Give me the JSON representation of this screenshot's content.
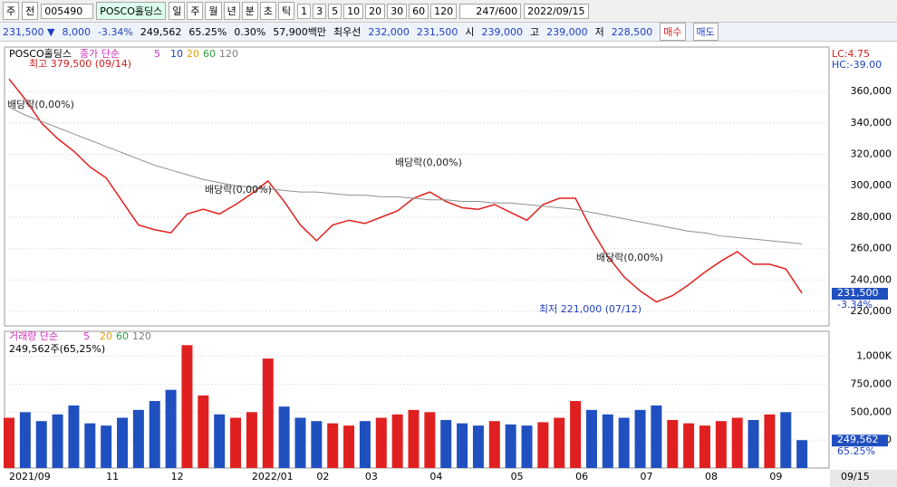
{
  "toolbar": {
    "market": "주",
    "scope": "전",
    "code": "005490",
    "name": "POSCO홀딩스",
    "periods": [
      "일",
      "주",
      "월",
      "년",
      "분",
      "초",
      "틱"
    ],
    "intervals": [
      "1",
      "3",
      "5",
      "10",
      "20",
      "30",
      "60",
      "120"
    ],
    "count": "247/600",
    "date": "2022/09/15"
  },
  "info_bar": {
    "price": "231,500 ▼",
    "change": "8,000",
    "change_pct": "-3.34%",
    "volume": "249,562",
    "volume_pct": "65.25%",
    "turnover": "0.30%",
    "amount": "57,900백만",
    "best_label": "최우선",
    "ask": "232,000",
    "bid": "231,500",
    "open_label": "시",
    "open": "239,000",
    "high_label": "고",
    "high": "239,000",
    "low_label": "저",
    "low": "228,500",
    "buy": "매수",
    "sell": "매도"
  },
  "chart_data": [
    {
      "type": "line",
      "title": "POSCO홀딩스",
      "legend": {
        "title": "종가 단순",
        "items": [
          {
            "name": "5",
            "color": "#d030c0"
          },
          {
            "name": "10",
            "color": "#2040d0"
          },
          {
            "name": "20",
            "color": "#e0a000"
          },
          {
            "name": "60",
            "color": "#30a040"
          },
          {
            "name": "120",
            "color": "#808080"
          }
        ]
      },
      "categories": [
        "2021/09",
        null,
        null,
        null,
        null,
        null,
        "11",
        null,
        null,
        null,
        "12",
        null,
        null,
        null,
        null,
        "2022/01",
        null,
        null,
        null,
        "02",
        null,
        null,
        "03",
        null,
        null,
        null,
        "04",
        null,
        null,
        null,
        null,
        "05",
        null,
        null,
        null,
        "06",
        null,
        null,
        null,
        "07",
        null,
        null,
        null,
        "08",
        null,
        null,
        null,
        "09",
        null,
        null
      ],
      "series": [
        {
          "color": "#e02020",
          "values": [
            368000,
            355000,
            340000,
            330000,
            322000,
            312000,
            305000,
            290000,
            275000,
            272000,
            270000,
            282000,
            285000,
            282000,
            288000,
            295000,
            303000,
            290000,
            275000,
            265000,
            275000,
            278000,
            276000,
            280000,
            284000,
            292000,
            296000,
            290000,
            286000,
            285000,
            288000,
            283000,
            278000,
            288000,
            292000,
            292000,
            272000,
            255000,
            242000,
            233000,
            226000,
            230000,
            237000,
            245000,
            252000,
            258000,
            250000,
            250000,
            247000,
            231500
          ]
        },
        {
          "color": "#909090",
          "values": [
            350000,
            345000,
            341000,
            337000,
            333000,
            329000,
            325000,
            321000,
            317000,
            313000,
            310000,
            307000,
            304000,
            302000,
            300000,
            299000,
            298000,
            297000,
            296000,
            296000,
            295000,
            294000,
            294000,
            293000,
            293000,
            292000,
            291000,
            291000,
            290000,
            290000,
            289000,
            289000,
            288000,
            287000,
            286000,
            285000,
            283000,
            281000,
            279000,
            277000,
            275000,
            273000,
            271000,
            270000,
            268000,
            267000,
            266000,
            265000,
            264000,
            263000
          ]
        }
      ],
      "ylim": [
        210750,
        388300
      ],
      "yticks": [
        {
          "value": 360000,
          "label": "360,000"
        },
        {
          "value": 340000,
          "label": "340,000"
        },
        {
          "value": 320000,
          "label": "320,000"
        },
        {
          "value": 300000,
          "label": "300,000"
        },
        {
          "value": 280000,
          "label": "280,000"
        },
        {
          "value": 260000,
          "label": "260,000"
        },
        {
          "value": 240000,
          "label": "240,000"
        },
        {
          "value": 220000,
          "label": "220,000"
        }
      ],
      "annotations": [
        "최고 379,500 (09/14)",
        "배당락(0,00%)",
        "배당락(0,00%)",
        "배당락(0,00%)",
        "배당락(0,00%)",
        "최저 221,000 (07/12)"
      ],
      "last_label": "231,500",
      "last_change": "-3.34%",
      "lc": "LC:4.75",
      "hc": "HC:-39.00",
      "end_date": "09/15"
    },
    {
      "type": "bar",
      "legend": {
        "title": "거래량 단순",
        "items": [
          {
            "name": "5",
            "color": "#d030c0"
          },
          {
            "name": "20",
            "color": "#e0a000"
          },
          {
            "name": "60",
            "color": "#30a040"
          },
          {
            "name": "120",
            "color": "#808080"
          }
        ]
      },
      "subtitle": "249,562주(65,25%)",
      "up_color": "#e02020",
      "down_color": "#2050c0",
      "values": [
        450000,
        500000,
        420000,
        480000,
        560000,
        400000,
        380000,
        450000,
        520000,
        600000,
        700000,
        1100000,
        650000,
        480000,
        450000,
        500000,
        980000,
        550000,
        450000,
        420000,
        400000,
        380000,
        420000,
        450000,
        480000,
        520000,
        500000,
        430000,
        400000,
        380000,
        420000,
        390000,
        380000,
        410000,
        450000,
        600000,
        520000,
        480000,
        450000,
        520000,
        560000,
        430000,
        400000,
        380000,
        420000,
        450000,
        430000,
        480000,
        500000,
        249562
      ],
      "ylim": [
        0,
        1208000
      ],
      "yticks": [
        {
          "value": 1000000,
          "label": "1,000K"
        },
        {
          "value": 750000,
          "label": "750,000"
        },
        {
          "value": 500000,
          "label": "500,000"
        },
        {
          "value": 250000,
          "label": "250,000"
        }
      ],
      "last_label": "249,562",
      "last_change": "65.25%"
    }
  ]
}
